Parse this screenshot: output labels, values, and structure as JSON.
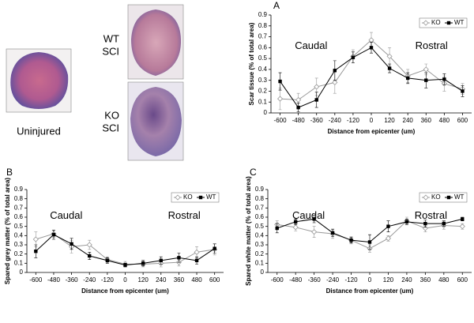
{
  "images": [
    {
      "lines": [
        "Uninjured"
      ]
    },
    {
      "lines": [
        "WT",
        "SCI"
      ]
    },
    {
      "lines": [
        "KO",
        "SCI"
      ]
    }
  ],
  "chart_data": [
    {
      "type": "line",
      "panel": "A",
      "x_label": "Distance from epicenter (um)",
      "y_label": "Scar tissue (% of total area)",
      "annotations": [
        "Caudal",
        "Rostral"
      ],
      "x": [
        -600,
        -480,
        -360,
        -240,
        -120,
        0,
        120,
        240,
        360,
        480,
        600
      ],
      "xlim": [
        -660,
        660
      ],
      "xticks": [
        -600,
        -480,
        -360,
        -240,
        -120,
        0,
        120,
        240,
        360,
        480,
        600
      ],
      "ylim": [
        0,
        0.9
      ],
      "yticks": [
        0,
        0.1,
        0.2,
        0.3,
        0.4,
        0.5,
        0.6,
        0.7,
        0.8,
        0.9
      ],
      "legend": "upper right",
      "series": [
        {
          "name": "KO",
          "color": "#999999",
          "values": [
            0.13,
            0.12,
            0.24,
            0.28,
            0.52,
            0.67,
            0.52,
            0.34,
            0.4,
            0.27,
            0.22
          ],
          "errors": [
            0.1,
            0.06,
            0.08,
            0.1,
            0.06,
            0.07,
            0.08,
            0.06,
            0.05,
            0.07,
            0.05
          ]
        },
        {
          "name": "WT",
          "color": "#000000",
          "values": [
            0.29,
            0.05,
            0.12,
            0.39,
            0.51,
            0.6,
            0.41,
            0.32,
            0.3,
            0.31,
            0.2
          ],
          "errors": [
            0.08,
            0.04,
            0.07,
            0.09,
            0.05,
            0.05,
            0.04,
            0.05,
            0.07,
            0.05,
            0.05
          ]
        }
      ]
    },
    {
      "type": "line",
      "panel": "B",
      "x_label": "Distance from epicenter (um)",
      "y_label": "Spared grey matter (% of total area)",
      "annotations": [
        "Caudal",
        "Rostral"
      ],
      "x": [
        -600,
        -480,
        -360,
        -240,
        -120,
        0,
        120,
        240,
        360,
        480,
        600
      ],
      "xlim": [
        -660,
        660
      ],
      "xticks": [
        -600,
        -480,
        -360,
        -240,
        -120,
        0,
        120,
        240,
        360,
        480,
        600
      ],
      "ylim": [
        0,
        0.9
      ],
      "yticks": [
        0,
        0.1,
        0.2,
        0.3,
        0.4,
        0.5,
        0.6,
        0.7,
        0.8,
        0.9
      ],
      "legend": "upper right",
      "series": [
        {
          "name": "KO",
          "color": "#999999",
          "values": [
            0.36,
            0.42,
            0.28,
            0.3,
            0.14,
            0.09,
            0.09,
            0.1,
            0.11,
            0.22,
            0.25
          ],
          "errors": [
            0.08,
            0.04,
            0.07,
            0.05,
            0.03,
            0.03,
            0.03,
            0.04,
            0.04,
            0.06,
            0.06
          ]
        },
        {
          "name": "WT",
          "color": "#000000",
          "values": [
            0.23,
            0.41,
            0.31,
            0.18,
            0.13,
            0.08,
            0.1,
            0.13,
            0.16,
            0.13,
            0.26
          ],
          "errors": [
            0.07,
            0.05,
            0.06,
            0.04,
            0.03,
            0.02,
            0.03,
            0.04,
            0.05,
            0.04,
            0.05
          ]
        }
      ]
    },
    {
      "type": "line",
      "panel": "C",
      "x_label": "Distance from epicenter (um)",
      "y_label": "Spared white matter (% of total area)",
      "annotations": [
        "Caudal",
        "Rostral"
      ],
      "x": [
        -600,
        -480,
        -360,
        -240,
        -120,
        0,
        120,
        240,
        360,
        480,
        600
      ],
      "xlim": [
        -660,
        660
      ],
      "xticks": [
        -600,
        -480,
        -360,
        -240,
        -120,
        0,
        120,
        240,
        360,
        480,
        600
      ],
      "ylim": [
        0,
        0.9
      ],
      "yticks": [
        0,
        0.1,
        0.2,
        0.3,
        0.4,
        0.5,
        0.6,
        0.7,
        0.8,
        0.9
      ],
      "legend": "upper right",
      "series": [
        {
          "name": "KO",
          "color": "#999999",
          "values": [
            0.52,
            0.49,
            0.44,
            0.42,
            0.35,
            0.26,
            0.37,
            0.56,
            0.48,
            0.51,
            0.5
          ],
          "errors": [
            0.04,
            0.04,
            0.06,
            0.05,
            0.04,
            0.04,
            0.03,
            0.04,
            0.04,
            0.04,
            0.03
          ]
        },
        {
          "name": "WT",
          "color": "#000000",
          "values": [
            0.48,
            0.55,
            0.58,
            0.43,
            0.35,
            0.33,
            0.5,
            0.55,
            0.53,
            0.53,
            0.58
          ],
          "errors": [
            0.05,
            0.03,
            0.04,
            0.04,
            0.03,
            0.08,
            0.06,
            0.03,
            0.04,
            0.03,
            0.02
          ]
        }
      ]
    }
  ]
}
